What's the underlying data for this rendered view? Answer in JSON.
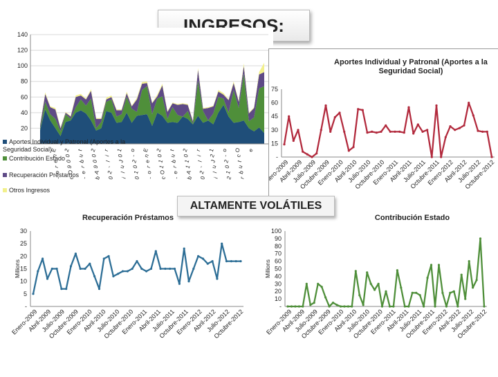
{
  "header": {
    "title": "INGRESOS:",
    "note": "ALTAMENTE VOLÁTILES"
  },
  "chart_data": [
    {
      "id": "stacked",
      "type": "area",
      "title": "",
      "ylim": [
        0,
        140
      ],
      "yticks": [
        20,
        40,
        60,
        80,
        100,
        120,
        140
      ],
      "x_labels": [
        "E",
        "n",
        "e",
        "r",
        "o",
        "-",
        "2",
        "0",
        "0",
        "9",
        "O",
        "c",
        "t",
        "u",
        "b",
        "r",
        "e",
        "-",
        "2",
        "0",
        "0",
        "9",
        "A",
        "b",
        "r",
        "i",
        "l",
        "-",
        "2",
        "0",
        "1",
        "0",
        "J",
        "u",
        "l",
        "i",
        "o",
        "-",
        "2",
        "0",
        "1",
        "0",
        "E",
        "n",
        "e",
        "r",
        "o",
        "-",
        "2",
        "0",
        "1",
        "1",
        "O",
        "c",
        "t",
        "u",
        "b",
        "r",
        "e",
        "-",
        "2",
        "0",
        "1",
        "1",
        "A",
        "b",
        "r",
        "i",
        "l",
        "-",
        "2",
        "0",
        "1",
        "2",
        "J",
        "u",
        "l",
        "i",
        "o",
        "-",
        "2",
        "0",
        "1",
        "2",
        "O",
        "c",
        "t",
        "u",
        "b",
        "r",
        "e"
      ],
      "legend": [
        {
          "name": "Aportes Individual y Patronal (Aportes a la Seguridad Social)",
          "color": "#1f4e79"
        },
        {
          "name": "Contribución Estado",
          "color": "#4f8f3a"
        },
        {
          "name": "Recuperación Préstamos",
          "color": "#5e4a86"
        },
        {
          "name": "Otros Ingresos",
          "color": "#f2f08c"
        }
      ],
      "series": [
        {
          "name": "Aportes Individual y Patronal (Aportes a la Seguridad Social)",
          "values": [
            18,
            44,
            30,
            20,
            10,
            28,
            30,
            40,
            43,
            39,
            30,
            17,
            20,
            42,
            40,
            27,
            28,
            40,
            27,
            36,
            37,
            38,
            23,
            40,
            36,
            27,
            28,
            27,
            35,
            32,
            25,
            36,
            27,
            30,
            25,
            40,
            50,
            35,
            27,
            28,
            30,
            20,
            16,
            21,
            14
          ]
        },
        {
          "name": "Contribución Estado",
          "values": [
            2,
            10,
            8,
            12,
            6,
            10,
            2,
            7,
            14,
            10,
            28,
            3,
            8,
            12,
            17,
            8,
            10,
            20,
            18,
            5,
            32,
            36,
            15,
            18,
            25,
            5,
            19,
            10,
            0,
            10,
            1,
            45,
            15,
            0,
            14,
            20,
            8,
            5,
            42,
            18,
            60,
            9,
            18,
            50,
            60
          ]
        },
        {
          "name": "Recuperación Préstamos",
          "values": [
            4,
            10,
            9,
            12,
            4,
            2,
            3,
            13,
            5,
            8,
            10,
            12,
            4,
            3,
            3,
            8,
            5,
            5,
            3,
            16,
            8,
            4,
            14,
            3,
            14,
            9,
            5,
            13,
            16,
            8,
            3,
            14,
            3,
            16,
            9,
            7,
            5,
            16,
            9,
            8,
            10,
            10,
            12,
            18,
            18
          ]
        },
        {
          "name": "Otros Ingresos",
          "values": [
            1,
            2,
            1,
            2,
            1,
            1,
            1,
            2,
            2,
            1,
            2,
            1,
            1,
            2,
            2,
            1,
            1,
            2,
            1,
            2,
            2,
            2,
            1,
            2,
            2,
            1,
            1,
            1,
            1,
            1,
            1,
            2,
            1,
            1,
            1,
            2,
            2,
            1,
            2,
            1,
            3,
            1,
            1,
            3,
            12
          ]
        }
      ]
    },
    {
      "id": "aportes",
      "type": "line",
      "title": "Aportes Individual y Patronal (Aportes a la Seguridad Social)",
      "ylim": [
        0,
        75
      ],
      "yticks": [
        "-",
        "15",
        "30",
        "45",
        "60",
        "75"
      ],
      "color": "#b22a3d",
      "x_labels": [
        "Enero-2009",
        "Abril-2009",
        "Julio-2009",
        "Octubre-2009",
        "Enero-2010",
        "Abril-2010",
        "Julio-2010",
        "Octubre-2010",
        "Enero-2011",
        "Abril-2011",
        "Julio-2011",
        "Octubre-2011",
        "Enero-2012",
        "Abril-2012",
        "Julio-2012",
        "Octubre-2012"
      ],
      "values": [
        14,
        45,
        18,
        30,
        6,
        3,
        0,
        4,
        30,
        57,
        28,
        44,
        49,
        28,
        7,
        11,
        53,
        52,
        27,
        28,
        27,
        28,
        35,
        28,
        28,
        28,
        27,
        55,
        26,
        36,
        28,
        30,
        0,
        57,
        0,
        22,
        34,
        30,
        32,
        35,
        60,
        46,
        29,
        28,
        28,
        0
      ]
    },
    {
      "id": "recup",
      "type": "line",
      "title": "Recuperación Préstamos",
      "ylabel": "Millions",
      "ylim": [
        0,
        30
      ],
      "yticks": [
        "-",
        "5",
        "10",
        "15",
        "20",
        "25",
        "30"
      ],
      "color": "#2d6e96",
      "x_labels": [
        "Enero-2009",
        "Abril-2009",
        "Julio-2009",
        "Octubre-2009",
        "Enero-2010",
        "Abril-2010",
        "Julio-2010",
        "Octubre-2010",
        "Enero-2011",
        "Abril-2011",
        "Julio-2011",
        "Octubre-2011",
        "Enero-2012",
        "Abril-2012",
        "Julio-2012",
        "Octubre-2012"
      ],
      "values": [
        5,
        14,
        19,
        11,
        15,
        15,
        7,
        7,
        16,
        21,
        15,
        15,
        17,
        12,
        7,
        19,
        20,
        12,
        13,
        14,
        14,
        15,
        18,
        15,
        14,
        15,
        22,
        15,
        15,
        15,
        15,
        9,
        23,
        10,
        15,
        20,
        19,
        17,
        18,
        11,
        25,
        18,
        18,
        18,
        18
      ]
    },
    {
      "id": "contrib",
      "type": "line",
      "title": "Contribución Estado",
      "ylabel": "Millions",
      "ylim": [
        0,
        100
      ],
      "yticks": [
        "-",
        "10",
        "20",
        "30",
        "40",
        "50",
        "60",
        "70",
        "80",
        "90",
        "100"
      ],
      "color": "#4f8f3a",
      "x_labels": [
        "Enero-2009",
        "Abril-2009",
        "Julio-2009",
        "Octubre-2009",
        "Enero-2010",
        "Abril-2010",
        "Julio-2010",
        "Octubre-2010",
        "Enero-2011",
        "Abril-2011",
        "Julio-2011",
        "Octubre-2011",
        "Enero-2012",
        "Abril-2012",
        "Julio-2012",
        "Octubre-2012"
      ],
      "values": [
        0,
        0,
        0,
        0,
        0,
        30,
        2,
        5,
        30,
        26,
        12,
        0,
        5,
        2,
        0,
        0,
        0,
        0,
        47,
        15,
        2,
        45,
        30,
        22,
        30,
        0,
        20,
        0,
        0,
        48,
        25,
        0,
        0,
        18,
        18,
        15,
        0,
        38,
        55,
        0,
        55,
        18,
        0,
        18,
        20,
        0,
        42,
        10,
        60,
        25,
        35,
        90,
        0
      ]
    }
  ]
}
